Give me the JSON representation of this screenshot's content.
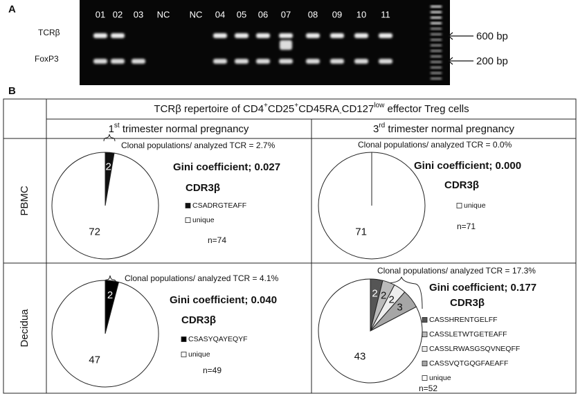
{
  "panel_a": {
    "label": "A",
    "lanes": [
      "01",
      "02",
      "03",
      "NC",
      "NC",
      "04",
      "05",
      "06",
      "07",
      "08",
      "09",
      "10",
      "11"
    ],
    "rows": [
      "TCRβ",
      "FoxP3"
    ],
    "markers": [
      "600 bp",
      "200 bp"
    ]
  },
  "panel_b": {
    "label": "B",
    "title": [
      "TCRβ repertoire of CD4",
      "+",
      "CD25",
      "+",
      "CD45RA",
      "-",
      "CD127",
      "low",
      " effector Treg cells"
    ],
    "columns": [
      [
        "1",
        "st",
        " trimester normal pregnancy"
      ],
      [
        "3",
        "rd",
        " trimester normal pregnancy"
      ]
    ],
    "rows": [
      "PBMC",
      "Decidua"
    ],
    "cells": [
      {
        "caption": "Clonal populations/ analyzed TCR = 2.7%",
        "gini": "Gini coefficient; 0.027",
        "cdr": "CDR3β",
        "legend": [
          "CSADRGTEAFF",
          "unique"
        ],
        "n": "n=74",
        "values": [
          2,
          72
        ],
        "colors": [
          "#111111",
          "#ffffff"
        ]
      },
      {
        "caption": "Clonal populations/ analyzed TCR = 0.0%",
        "gini": "Gini coefficient; 0.000",
        "cdr": "CDR3β",
        "legend": [
          "unique"
        ],
        "n": "n=71",
        "values": [
          71
        ],
        "colors": [
          "#ffffff"
        ]
      },
      {
        "caption": "Clonal populations/ analyzed TCR = 4.1%",
        "gini": "Gini coefficient; 0.040",
        "cdr": "CDR3β",
        "legend": [
          "CSASYQAYEQYF",
          "unique"
        ],
        "n": "n=49",
        "values": [
          2,
          47
        ],
        "colors": [
          "#000000",
          "#ffffff"
        ]
      },
      {
        "caption": "Clonal populations/ analyzed TCR = 17.3%",
        "gini": "Gini coefficient; 0.177",
        "cdr": "CDR3β",
        "legend": [
          "CASSHRENTGELFF",
          "CASSLETWTGETEAFF",
          "CASSLRWASGSQVNEQFF",
          "CASSVQTGQGFAEAFF",
          "unique"
        ],
        "n": "n=52",
        "values": [
          2,
          2,
          2,
          3,
          43
        ],
        "colors": [
          "#555555",
          "#bbbbbb",
          "#eeeeee",
          "#a6a6a6",
          "#ffffff"
        ]
      }
    ]
  }
}
